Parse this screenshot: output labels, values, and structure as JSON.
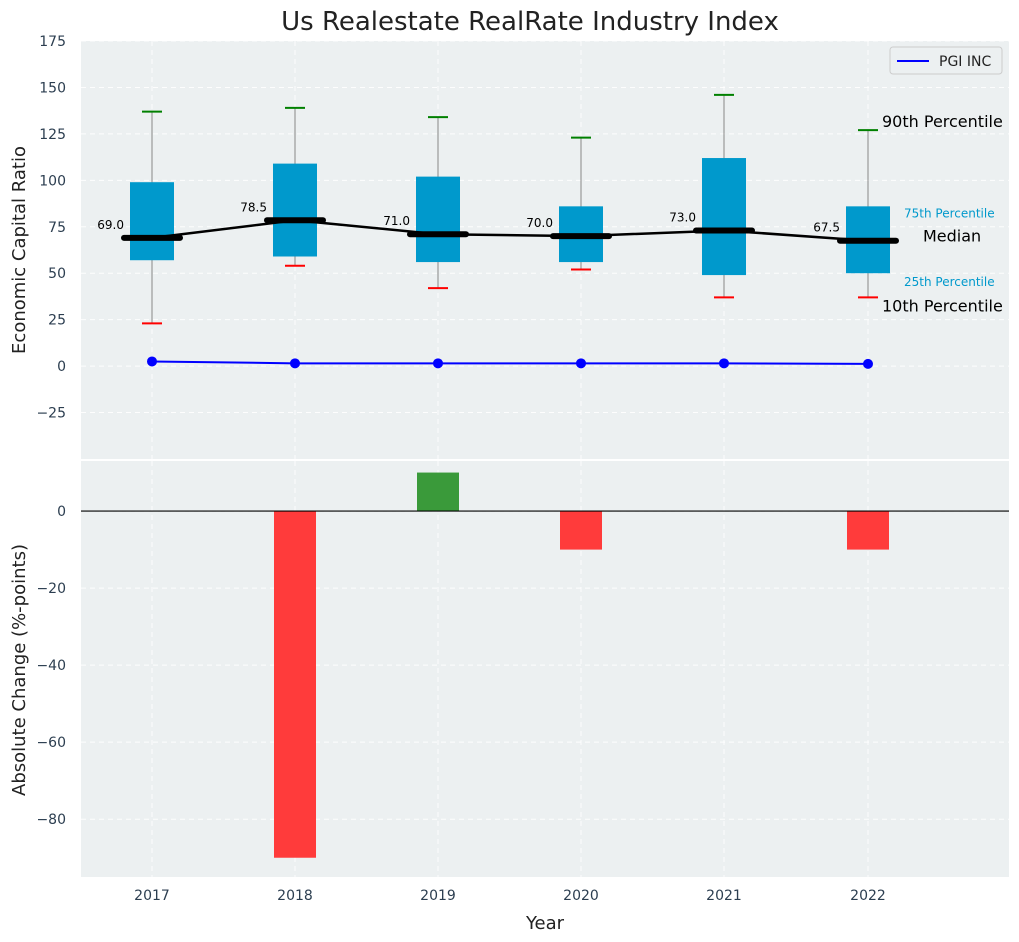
{
  "chart_data": [
    {
      "type": "box",
      "title": "Us Realestate RealRate Industry Index",
      "ylabel": "Economic Capital Ratio",
      "ylim": [
        -50,
        175
      ],
      "yticks": [
        -25,
        0,
        25,
        50,
        75,
        100,
        125,
        150,
        175
      ],
      "ytick_labels": [
        "−25",
        "0",
        "25",
        "50",
        "75",
        "100",
        "125",
        "150",
        "175"
      ],
      "categories": [
        "2017",
        "2018",
        "2019",
        "2020",
        "2021",
        "2022"
      ],
      "p10": [
        23,
        54,
        42,
        52,
        37,
        37
      ],
      "p25": [
        57,
        59,
        56,
        56,
        49,
        50
      ],
      "median": [
        69.0,
        78.5,
        71.0,
        70.0,
        73.0,
        67.5
      ],
      "median_labels": [
        "69.0",
        "78.5",
        "71.0",
        "70.0",
        "73.0",
        "67.5"
      ],
      "p75": [
        99,
        109,
        102,
        86,
        112,
        86
      ],
      "p90": [
        137,
        139,
        134,
        123,
        146,
        127
      ],
      "series": [
        {
          "name": "PGI INC",
          "values": [
            2.5,
            1.5,
            1.5,
            1.5,
            1.5,
            1.2
          ]
        }
      ],
      "legend_position": "top-right",
      "annotations": {
        "p90": "90th Percentile",
        "p75": "75th Percentile",
        "median": "Median",
        "p25": "25th Percentile",
        "p10": "10th Percentile"
      },
      "grid": true,
      "colors": {
        "box": "#0099cc",
        "whisker_top": "#008000",
        "whisker_bottom": "#ff0000",
        "series": "#0000ff",
        "median": "#000000",
        "background": "#ecf0f1"
      }
    },
    {
      "type": "bar",
      "ylabel": "Absolute Change (%-points)",
      "xlabel": "Year",
      "ylim": [
        -95,
        13
      ],
      "yticks": [
        -80,
        -60,
        -40,
        -20,
        0
      ],
      "ytick_labels": [
        "−80",
        "−60",
        "−40",
        "−20",
        "0"
      ],
      "categories": [
        "2017",
        "2018",
        "2019",
        "2020",
        "2021",
        "2022"
      ],
      "values": [
        0,
        -90,
        10,
        -10,
        0,
        -10
      ],
      "grid": true,
      "colors": {
        "positive": "#3a9a3a",
        "negative": "#ff3b3b",
        "background": "#ecf0f1"
      }
    }
  ]
}
